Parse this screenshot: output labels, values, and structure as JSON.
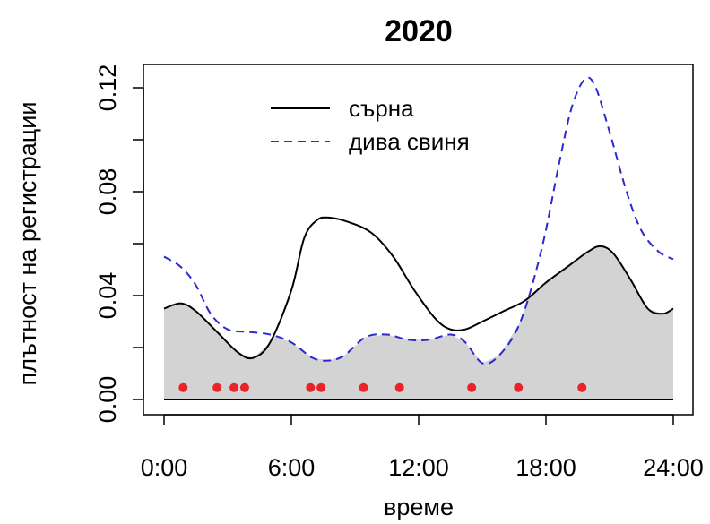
{
  "chart_data": {
    "type": "line",
    "title": "2020",
    "xlabel": "време",
    "ylabel": "плътност на регистрации",
    "xlim": [
      0,
      24
    ],
    "ylim": [
      0,
      0.12
    ],
    "x_ticks": [
      0,
      6,
      12,
      18,
      24
    ],
    "x_tick_labels": [
      "0:00",
      "6:00",
      "12:00",
      "18:00",
      "24:00"
    ],
    "y_ticks": [
      0,
      0.04,
      0.08,
      0.12
    ],
    "y_tick_labels": [
      "0.00",
      "0.04",
      "0.08",
      "0.12"
    ],
    "grid": false,
    "legend_position": "top-center",
    "overlap_fill_color": "#d3d3d3",
    "series": [
      {
        "name": "сърна",
        "color": "#000000",
        "style": "solid",
        "x": [
          0,
          0.8,
          1.5,
          2.5,
          3.5,
          4.2,
          5,
          6,
          6.6,
          7.2,
          7.8,
          8.8,
          9.8,
          10.8,
          11.8,
          12.8,
          13.5,
          14.2,
          15,
          16,
          17,
          18,
          19,
          20,
          20.6,
          21.2,
          22,
          22.8,
          23.5,
          24
        ],
        "y": [
          0.035,
          0.037,
          0.034,
          0.026,
          0.018,
          0.016,
          0.022,
          0.042,
          0.062,
          0.069,
          0.07,
          0.068,
          0.064,
          0.055,
          0.042,
          0.031,
          0.027,
          0.027,
          0.03,
          0.034,
          0.038,
          0.045,
          0.051,
          0.057,
          0.059,
          0.056,
          0.046,
          0.035,
          0.033,
          0.035
        ]
      },
      {
        "name": "дива свиня",
        "color": "#2a2ad0",
        "style": "dashed",
        "x": [
          0,
          0.8,
          1.5,
          2.2,
          3,
          4,
          5,
          6,
          7,
          7.8,
          8.5,
          9.5,
          10.5,
          11.5,
          12.5,
          13.5,
          14.2,
          15,
          15.8,
          16.8,
          17.8,
          18.6,
          19.2,
          19.8,
          20.3,
          21,
          21.8,
          22.5,
          23.3,
          24
        ],
        "y": [
          0.055,
          0.051,
          0.044,
          0.033,
          0.027,
          0.026,
          0.025,
          0.022,
          0.016,
          0.015,
          0.017,
          0.024,
          0.025,
          0.023,
          0.023,
          0.025,
          0.022,
          0.014,
          0.017,
          0.03,
          0.058,
          0.09,
          0.112,
          0.123,
          0.121,
          0.103,
          0.08,
          0.065,
          0.057,
          0.054
        ]
      }
    ],
    "observation_points": {
      "color": "#e8232a",
      "x": [
        0.9,
        2.5,
        3.3,
        3.8,
        6.9,
        7.4,
        9.4,
        11.1,
        14.5,
        16.7,
        19.7
      ],
      "y": [
        0.0025,
        0.0025,
        0.0025,
        0.0025,
        0.0025,
        0.0025,
        0.0025,
        0.0025,
        0.0025,
        0.0025,
        0.0025
      ]
    }
  }
}
